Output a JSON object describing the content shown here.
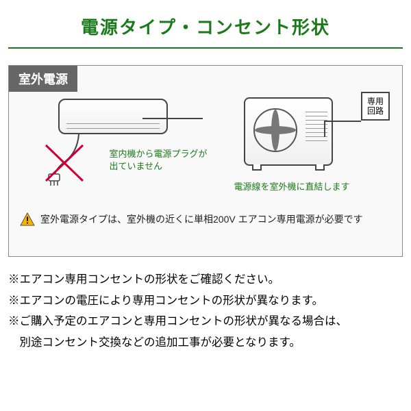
{
  "title": "電源タイプ・コンセント形状",
  "corner_label": "室外電源",
  "indoor_caption_line1": "室内機から電源プラグが",
  "indoor_caption_line2": "出ていません",
  "outdoor_caption": "電源線を室外機に直結します",
  "circuit_label": "専用\n回路",
  "warning_text": "室外電源タイプは、室外機の近くに単相200V エアコン専用電源が必要です",
  "notes": {
    "n1": "※エアコン専用コンセントの形状をご確認ください。",
    "n2": "※エアコンの電圧により専用コンセントの形状が異なります。",
    "n3": "※ご購入予定のエアコンと専用コンセントの形状が異なる場合は、",
    "n4": "別途コンセント交換などの追加工事が必要となります。"
  },
  "colors": {
    "accent_green": "#1a7a1a",
    "label_bg": "#666666",
    "border": "#444444",
    "x_red": "#cc0033",
    "warn_yellow": "#f5b400",
    "bg_panel": "#f9f9f9"
  }
}
